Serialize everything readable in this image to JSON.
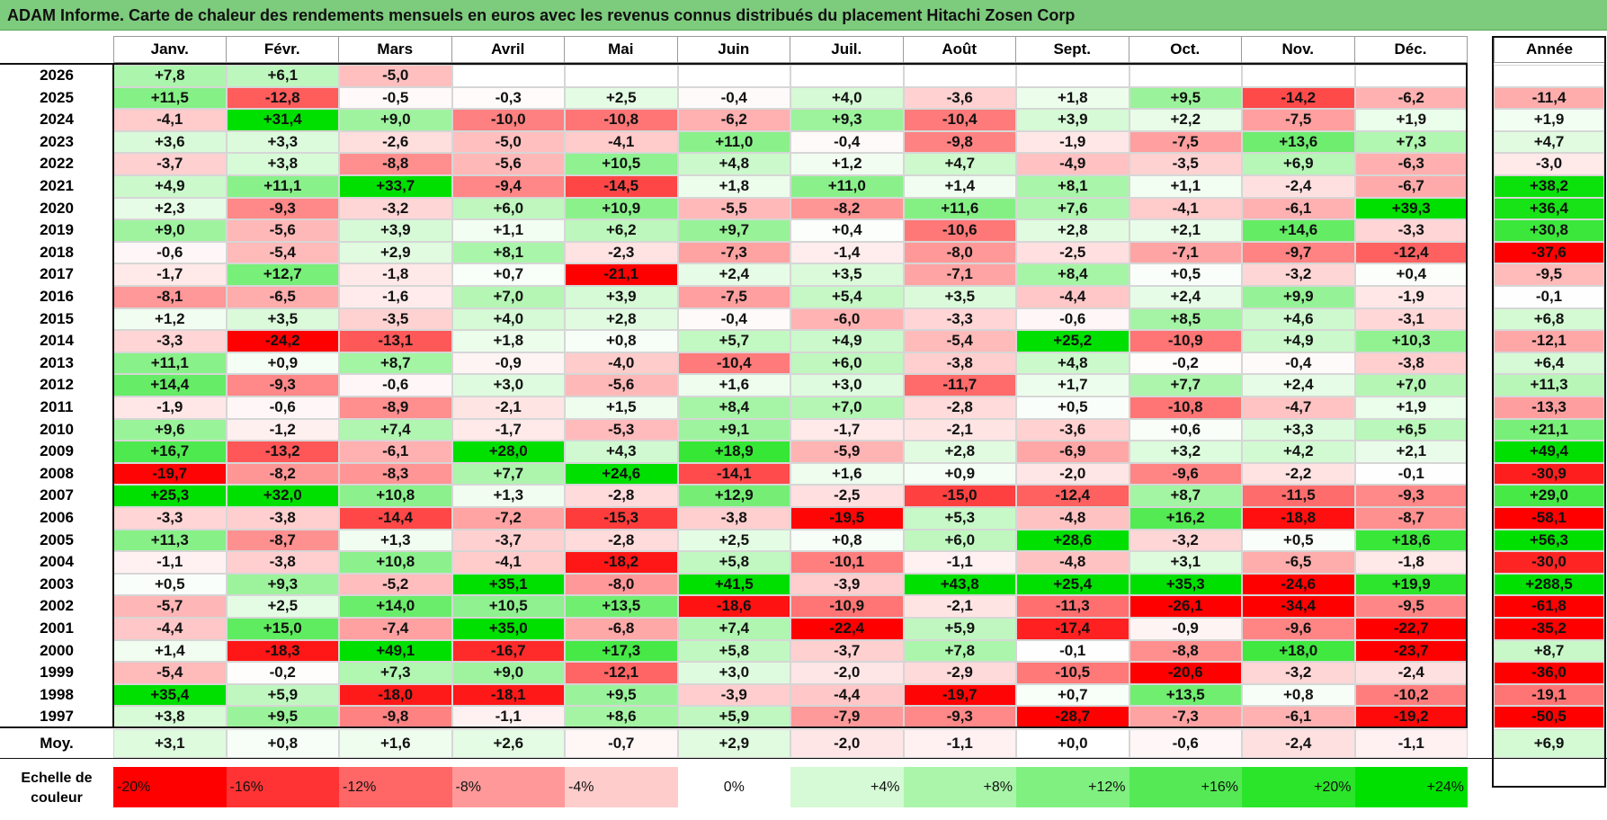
{
  "title": "ADAM Informe. Carte de chaleur des rendements mensuels en euros avec les revenus connus distribués du placement Hitachi Zosen Corp",
  "chart_data": {
    "type": "heatmap",
    "title": "ADAM Informe. Carte de chaleur des rendements mensuels en euros avec les revenus connus distribués du placement Hitachi Zosen Corp",
    "months": [
      "Janv.",
      "Févr.",
      "Mars",
      "Avril",
      "Mai",
      "Juin",
      "Juil.",
      "Août",
      "Sept.",
      "Oct.",
      "Nov.",
      "Déc."
    ],
    "annual_header": "Année",
    "rows": [
      {
        "year": "2026",
        "values": [
          "+7,8",
          "+6,1",
          "-5,0",
          "",
          "",
          "",
          "",
          "",
          "",
          "",
          "",
          ""
        ],
        "annual": ""
      },
      {
        "year": "2025",
        "values": [
          "+11,5",
          "-12,8",
          "-0,5",
          "-0,3",
          "+2,5",
          "-0,4",
          "+4,0",
          "-3,6",
          "+1,8",
          "+9,5",
          "-14,2",
          "-6,2"
        ],
        "annual": "-11,4"
      },
      {
        "year": "2024",
        "values": [
          "-4,1",
          "+31,4",
          "+9,0",
          "-10,0",
          "-10,8",
          "-6,2",
          "+9,3",
          "-10,4",
          "+3,9",
          "+2,2",
          "-7,5",
          "+1,9"
        ],
        "annual": "+1,9"
      },
      {
        "year": "2023",
        "values": [
          "+3,6",
          "+3,3",
          "-2,6",
          "-5,0",
          "-4,1",
          "+11,0",
          "-0,4",
          "-9,8",
          "-1,9",
          "-7,5",
          "+13,6",
          "+7,3"
        ],
        "annual": "+4,7"
      },
      {
        "year": "2022",
        "values": [
          "-3,7",
          "+3,8",
          "-8,8",
          "-5,6",
          "+10,5",
          "+4,8",
          "+1,2",
          "+4,7",
          "-4,9",
          "-3,5",
          "+6,9",
          "-6,3"
        ],
        "annual": "-3,0"
      },
      {
        "year": "2021",
        "values": [
          "+4,9",
          "+11,1",
          "+33,7",
          "-9,4",
          "-14,5",
          "+1,8",
          "+11,0",
          "+1,4",
          "+8,1",
          "+1,1",
          "-2,4",
          "-6,7"
        ],
        "annual": "+38,2"
      },
      {
        "year": "2020",
        "values": [
          "+2,3",
          "-9,3",
          "-3,2",
          "+6,0",
          "+10,9",
          "-5,5",
          "-8,2",
          "+11,6",
          "+7,6",
          "-4,1",
          "-6,1",
          "+39,3"
        ],
        "annual": "+36,4"
      },
      {
        "year": "2019",
        "values": [
          "+9,0",
          "-5,6",
          "+3,9",
          "+1,1",
          "+6,2",
          "+9,7",
          "+0,4",
          "-10,6",
          "+2,8",
          "+2,1",
          "+14,6",
          "-3,3"
        ],
        "annual": "+30,8"
      },
      {
        "year": "2018",
        "values": [
          "-0,6",
          "-5,4",
          "+2,9",
          "+8,1",
          "-2,3",
          "-7,3",
          "-1,4",
          "-8,0",
          "-2,5",
          "-7,1",
          "-9,7",
          "-12,4"
        ],
        "annual": "-37,6"
      },
      {
        "year": "2017",
        "values": [
          "-1,7",
          "+12,7",
          "-1,8",
          "+0,7",
          "-21,1",
          "+2,4",
          "+3,5",
          "-7,1",
          "+8,4",
          "+0,5",
          "-3,2",
          "+0,4"
        ],
        "annual": "-9,5"
      },
      {
        "year": "2016",
        "values": [
          "-8,1",
          "-6,5",
          "-1,6",
          "+7,0",
          "+3,9",
          "-7,5",
          "+5,4",
          "+3,5",
          "-4,4",
          "+2,4",
          "+9,9",
          "-1,9"
        ],
        "annual": "-0,1"
      },
      {
        "year": "2015",
        "values": [
          "+1,2",
          "+3,5",
          "-3,5",
          "+4,0",
          "+2,8",
          "-0,4",
          "-6,0",
          "-3,3",
          "-0,6",
          "+8,5",
          "+4,6",
          "-3,1"
        ],
        "annual": "+6,8"
      },
      {
        "year": "2014",
        "values": [
          "-3,3",
          "-24,2",
          "-13,1",
          "+1,8",
          "+0,8",
          "+5,7",
          "+4,9",
          "-5,4",
          "+25,2",
          "-10,9",
          "+4,9",
          "+10,3"
        ],
        "annual": "-12,1"
      },
      {
        "year": "2013",
        "values": [
          "+11,1",
          "+0,9",
          "+8,7",
          "-0,9",
          "-4,0",
          "-10,4",
          "+6,0",
          "-3,8",
          "+4,8",
          "-0,2",
          "-0,4",
          "-3,8"
        ],
        "annual": "+6,4"
      },
      {
        "year": "2012",
        "values": [
          "+14,4",
          "-9,3",
          "-0,6",
          "+3,0",
          "-5,6",
          "+1,6",
          "+3,0",
          "-11,7",
          "+1,7",
          "+7,7",
          "+2,4",
          "+7,0"
        ],
        "annual": "+11,3"
      },
      {
        "year": "2011",
        "values": [
          "-1,9",
          "-0,6",
          "-8,9",
          "-2,1",
          "+1,5",
          "+8,4",
          "+7,0",
          "-2,8",
          "+0,5",
          "-10,8",
          "-4,7",
          "+1,9"
        ],
        "annual": "-13,3"
      },
      {
        "year": "2010",
        "values": [
          "+9,6",
          "-1,2",
          "+7,4",
          "-1,7",
          "-5,3",
          "+9,1",
          "-1,7",
          "-2,1",
          "-3,6",
          "+0,6",
          "+3,3",
          "+6,5"
        ],
        "annual": "+21,1"
      },
      {
        "year": "2009",
        "values": [
          "+16,7",
          "-13,2",
          "-6,1",
          "+28,0",
          "+4,3",
          "+18,9",
          "-5,9",
          "+2,8",
          "-6,9",
          "+3,2",
          "+4,2",
          "+2,1"
        ],
        "annual": "+49,4"
      },
      {
        "year": "2008",
        "values": [
          "-19,7",
          "-8,2",
          "-8,3",
          "+7,7",
          "+24,6",
          "-14,1",
          "+1,6",
          "+0,9",
          "-2,0",
          "-9,6",
          "-2,2",
          "-0,1"
        ],
        "annual": "-30,9"
      },
      {
        "year": "2007",
        "values": [
          "+25,3",
          "+32,0",
          "+10,8",
          "+1,3",
          "-2,8",
          "+12,9",
          "-2,5",
          "-15,0",
          "-12,4",
          "+8,7",
          "-11,5",
          "-9,3"
        ],
        "annual": "+29,0"
      },
      {
        "year": "2006",
        "values": [
          "-3,3",
          "-3,8",
          "-14,4",
          "-7,2",
          "-15,3",
          "-3,8",
          "-19,5",
          "+5,3",
          "-4,8",
          "+16,2",
          "-18,8",
          "-8,7"
        ],
        "annual": "-58,1"
      },
      {
        "year": "2005",
        "values": [
          "+11,3",
          "-8,7",
          "+1,3",
          "-3,7",
          "-2,8",
          "+2,5",
          "+0,8",
          "+6,0",
          "+28,6",
          "-3,2",
          "+0,5",
          "+18,6"
        ],
        "annual": "+56,3"
      },
      {
        "year": "2004",
        "values": [
          "-1,1",
          "-3,8",
          "+10,8",
          "-4,1",
          "-18,2",
          "+5,8",
          "-10,1",
          "-1,1",
          "-4,8",
          "+3,1",
          "-6,5",
          "-1,8"
        ],
        "annual": "-30,0"
      },
      {
        "year": "2003",
        "values": [
          "+0,5",
          "+9,3",
          "-5,2",
          "+35,1",
          "-8,0",
          "+41,5",
          "-3,9",
          "+43,8",
          "+25,4",
          "+35,3",
          "-24,6",
          "+19,9"
        ],
        "annual": "+288,5"
      },
      {
        "year": "2002",
        "values": [
          "-5,7",
          "+2,5",
          "+14,0",
          "+10,5",
          "+13,5",
          "-18,6",
          "-10,9",
          "-2,1",
          "-11,3",
          "-26,1",
          "-34,4",
          "-9,5"
        ],
        "annual": "-61,8"
      },
      {
        "year": "2001",
        "values": [
          "-4,4",
          "+15,0",
          "-7,4",
          "+35,0",
          "-6,8",
          "+7,4",
          "-22,4",
          "+5,9",
          "-17,4",
          "-0,9",
          "-9,6",
          "-22,7"
        ],
        "annual": "-35,2"
      },
      {
        "year": "2000",
        "values": [
          "+1,4",
          "-18,3",
          "+49,1",
          "-16,7",
          "+17,3",
          "+5,8",
          "-3,7",
          "+7,8",
          "-0,1",
          "-8,8",
          "+18,0",
          "-23,7"
        ],
        "annual": "+8,7"
      },
      {
        "year": "1999",
        "values": [
          "-5,4",
          "-0,2",
          "+7,3",
          "+9,0",
          "-12,1",
          "+3,0",
          "-2,0",
          "-2,9",
          "-10,5",
          "-20,6",
          "-3,2",
          "-2,4"
        ],
        "annual": "-36,0"
      },
      {
        "year": "1998",
        "values": [
          "+35,4",
          "+5,9",
          "-18,0",
          "-18,1",
          "+9,5",
          "-3,9",
          "-4,4",
          "-19,7",
          "+0,7",
          "+13,5",
          "+0,8",
          "-10,2"
        ],
        "annual": "-19,1"
      },
      {
        "year": "1997",
        "values": [
          "+3,8",
          "+9,5",
          "-9,8",
          "-1,1",
          "+8,6",
          "+5,9",
          "-7,9",
          "-9,3",
          "-28,7",
          "-7,3",
          "-6,1",
          "-19,2"
        ],
        "annual": "-50,5"
      }
    ],
    "average_label": "Moy.",
    "averages": [
      "+3,1",
      "+0,8",
      "+1,6",
      "+2,6",
      "-0,7",
      "+2,9",
      "-2,0",
      "-1,1",
      "+0,0",
      "-0,6",
      "-2,4",
      "-1,1"
    ],
    "average_annual": "+6,9",
    "scale_label": "Echelle de couleur",
    "scale": [
      "-20%",
      "-16%",
      "-12%",
      "-8%",
      "-4%",
      "0%",
      "+4%",
      "+8%",
      "+12%",
      "+16%",
      "+20%",
      "+24%"
    ],
    "colors": {
      "negative_max": "#ff0000",
      "neutral": "#ffffff",
      "positive_max": "#00e000",
      "title_bar": "#7dcb7d"
    }
  }
}
